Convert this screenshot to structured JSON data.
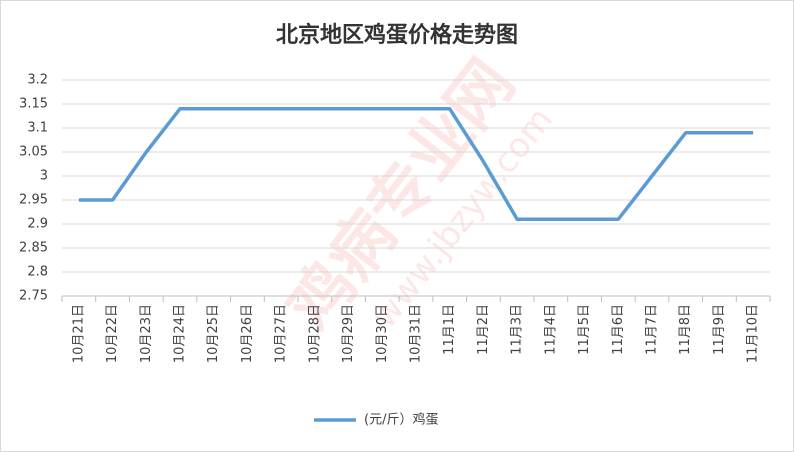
{
  "chart_data": {
    "type": "line",
    "title": "北京地区鸡蛋价格走势图",
    "categories": [
      "10月21日",
      "10月22日",
      "10月23日",
      "10月24日",
      "10月25日",
      "10月26日",
      "10月27日",
      "10月28日",
      "10月29日",
      "10月30日",
      "10月31日",
      "11月1日",
      "11月2日",
      "11月3日",
      "11月4日",
      "11月5日",
      "11月6日",
      "11月7日",
      "11月8日",
      "11月9日",
      "11月10日"
    ],
    "series": [
      {
        "name": "(元/斤）鸡蛋",
        "color": "#5b9bd5",
        "values": [
          2.95,
          2.95,
          3.05,
          3.14,
          3.14,
          3.14,
          3.14,
          3.14,
          3.14,
          3.14,
          3.14,
          3.14,
          3.03,
          2.91,
          2.91,
          2.91,
          2.91,
          3.0,
          3.09,
          3.09,
          3.09
        ]
      }
    ],
    "ylim": [
      2.75,
      3.2
    ],
    "yticks": [
      2.75,
      2.8,
      2.85,
      2.9,
      2.95,
      3,
      3.05,
      3.1,
      3.15,
      3.2
    ],
    "grid": true,
    "legend": "bottom"
  },
  "watermark": "鸡病专业网",
  "watermark_url": "www.jbzyw.com"
}
